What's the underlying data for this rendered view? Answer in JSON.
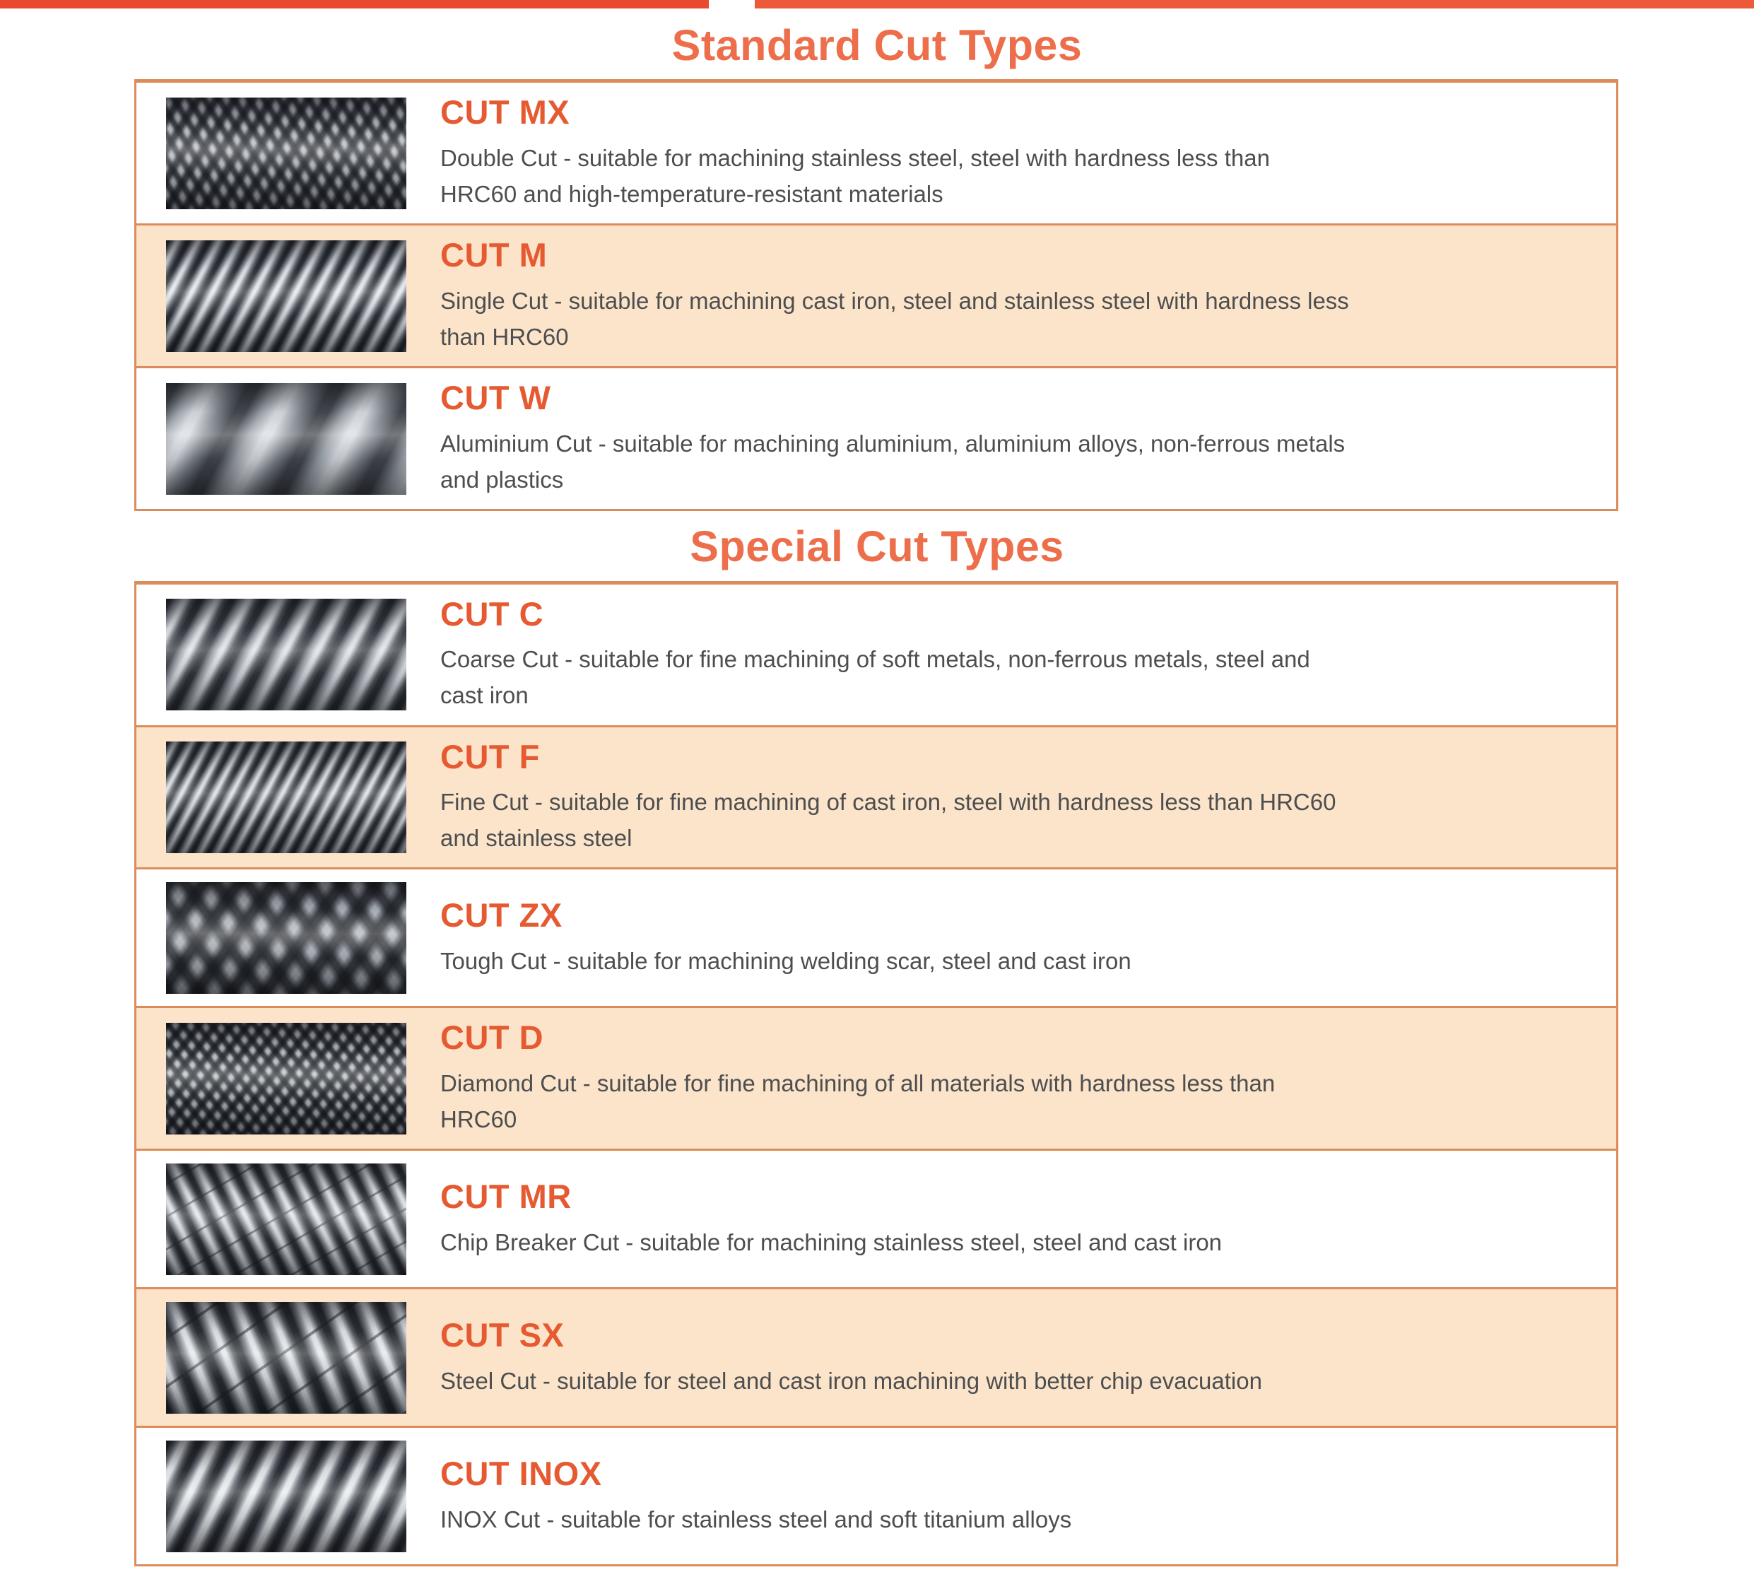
{
  "page": {
    "colors": {
      "top_bar_red": "#e9492f",
      "section_title_orange": "#ed6e4b",
      "cut_code_orange": "#e65a32",
      "table_border_orange": "#dd8b5a",
      "shaded_row_peach": "#fbe4c9",
      "description_gray": "#4d4e50"
    }
  },
  "sections": [
    {
      "title": "Standard Cut Types",
      "rows": [
        {
          "code": "CUT MX",
          "description": "Double Cut - suitable for machining stainless steel, steel with hardness less than HRC60 and high-temperature-resistant materials",
          "pattern": "double-cut"
        },
        {
          "code": "CUT M",
          "description": "Single Cut - suitable for machining cast iron, steel and stainless steel with hardness less than HRC60",
          "pattern": "single-cut"
        },
        {
          "code": "CUT W",
          "description": "Aluminium Cut - suitable for machining aluminium, aluminium alloys, non-ferrous metals and plastics",
          "pattern": "aluminium-cut"
        }
      ]
    },
    {
      "title": "Special Cut Types",
      "rows": [
        {
          "code": "CUT C",
          "description": "Coarse Cut - suitable for fine machining of soft metals, non-ferrous metals, steel and cast iron",
          "pattern": "coarse-cut"
        },
        {
          "code": "CUT F",
          "description": "Fine Cut - suitable for fine machining of cast iron, steel with hardness less than HRC60 and stainless steel",
          "pattern": "fine-cut"
        },
        {
          "code": "CUT ZX",
          "description": "Tough Cut - suitable for machining welding scar, steel and cast iron",
          "pattern": "tough-cut"
        },
        {
          "code": "CUT D",
          "description": "Diamond Cut - suitable for fine machining of all materials with hardness less than HRC60",
          "pattern": "diamond-cut"
        },
        {
          "code": "CUT MR",
          "description": "Chip Breaker Cut - suitable for machining stainless steel, steel and cast iron",
          "pattern": "chip-breaker-cut"
        },
        {
          "code": "CUT SX",
          "description": "Steel Cut - suitable for steel and cast iron machining with better chip evacuation",
          "pattern": "steel-cut"
        },
        {
          "code": "CUT INOX",
          "description": "INOX Cut - suitable for stainless steel and soft titanium alloys",
          "pattern": "inox-cut"
        }
      ]
    }
  ]
}
